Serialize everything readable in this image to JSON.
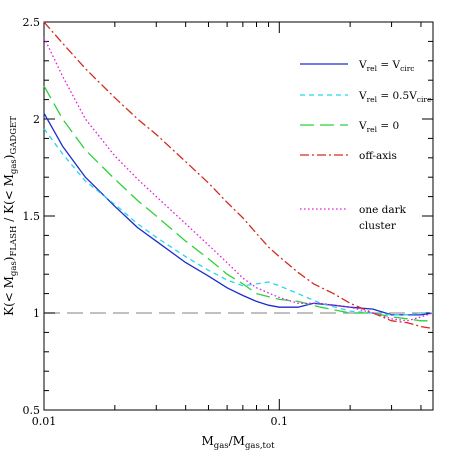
{
  "chart_data": {
    "type": "line",
    "title": "",
    "xlabel_parts": {
      "base": "M",
      "sub": "gas",
      "mid": "/M",
      "sub2": "gas,tot"
    },
    "ylabel_parts": [
      "K(< M",
      "gas",
      ")",
      "FLASH",
      " / K(< M",
      "gas",
      ")",
      "GADGET"
    ],
    "xscale": "log",
    "xlim": [
      0.01,
      0.45
    ],
    "ylim": [
      0.5,
      2.5
    ],
    "x_ticks": [
      {
        "value": 0.01,
        "label": "0.01"
      },
      {
        "value": 0.1,
        "label": "0.1"
      }
    ],
    "y_ticks": [
      {
        "value": 0.5,
        "label": "0.5"
      },
      {
        "value": 1,
        "label": "1"
      },
      {
        "value": 1.5,
        "label": "1.5"
      },
      {
        "value": 2,
        "label": "2"
      },
      {
        "value": 2.5,
        "label": "2.5"
      }
    ],
    "reference_line": {
      "y": 1,
      "color": "#9a9a9a",
      "dash": "long-dash"
    },
    "legend_position": "top-right",
    "series": [
      {
        "name": "V_rel = V_circ",
        "legend_parts": [
          "V",
          "rel",
          " = V",
          "circ"
        ],
        "color": "#1c2ccf",
        "dash": "solid",
        "points": [
          [
            0.01,
            2.03
          ],
          [
            0.012,
            1.86
          ],
          [
            0.015,
            1.7
          ],
          [
            0.02,
            1.55
          ],
          [
            0.025,
            1.44
          ],
          [
            0.03,
            1.37
          ],
          [
            0.04,
            1.26
          ],
          [
            0.05,
            1.19
          ],
          [
            0.06,
            1.13
          ],
          [
            0.07,
            1.09
          ],
          [
            0.08,
            1.06
          ],
          [
            0.09,
            1.04
          ],
          [
            0.1,
            1.03
          ],
          [
            0.12,
            1.03
          ],
          [
            0.14,
            1.05
          ],
          [
            0.17,
            1.04
          ],
          [
            0.2,
            1.03
          ],
          [
            0.25,
            1.02
          ],
          [
            0.3,
            0.99
          ],
          [
            0.35,
            0.99
          ],
          [
            0.4,
            0.99
          ],
          [
            0.45,
            1.0
          ]
        ]
      },
      {
        "name": "V_rel = 0.5V_circ",
        "legend_parts": [
          "V",
          "rel",
          " = 0.5V",
          "circ"
        ],
        "color": "#2ad4ee",
        "dash": "short-dash",
        "points": [
          [
            0.01,
            1.95
          ],
          [
            0.012,
            1.82
          ],
          [
            0.015,
            1.68
          ],
          [
            0.02,
            1.56
          ],
          [
            0.025,
            1.46
          ],
          [
            0.03,
            1.39
          ],
          [
            0.04,
            1.29
          ],
          [
            0.05,
            1.22
          ],
          [
            0.06,
            1.17
          ],
          [
            0.07,
            1.14
          ],
          [
            0.08,
            1.15
          ],
          [
            0.09,
            1.16
          ],
          [
            0.1,
            1.14
          ],
          [
            0.12,
            1.1
          ],
          [
            0.15,
            1.05
          ],
          [
            0.2,
            1.01
          ],
          [
            0.25,
            1.0
          ],
          [
            0.3,
            0.99
          ],
          [
            0.35,
            0.99
          ],
          [
            0.4,
            1.0
          ],
          [
            0.45,
            1.0
          ]
        ]
      },
      {
        "name": "V_rel = 0",
        "legend_parts": [
          "V",
          "rel",
          " = 0"
        ],
        "color": "#2ed13a",
        "dash": "long-dash",
        "points": [
          [
            0.01,
            2.17
          ],
          [
            0.012,
            2.0
          ],
          [
            0.015,
            1.84
          ],
          [
            0.02,
            1.69
          ],
          [
            0.025,
            1.58
          ],
          [
            0.03,
            1.5
          ],
          [
            0.04,
            1.37
          ],
          [
            0.05,
            1.28
          ],
          [
            0.06,
            1.2
          ],
          [
            0.07,
            1.15
          ],
          [
            0.08,
            1.1
          ],
          [
            0.1,
            1.07
          ],
          [
            0.12,
            1.06
          ],
          [
            0.15,
            1.03
          ],
          [
            0.2,
            1.0
          ],
          [
            0.25,
            1.0
          ],
          [
            0.3,
            0.98
          ],
          [
            0.35,
            0.97
          ],
          [
            0.4,
            0.96
          ],
          [
            0.45,
            0.96
          ]
        ]
      },
      {
        "name": "off-axis",
        "legend_parts": [
          "off-axis"
        ],
        "color": "#d42b1e",
        "dash": "dash-dot",
        "points": [
          [
            0.01,
            2.5
          ],
          [
            0.012,
            2.39
          ],
          [
            0.015,
            2.26
          ],
          [
            0.02,
            2.11
          ],
          [
            0.025,
            2.0
          ],
          [
            0.03,
            1.92
          ],
          [
            0.04,
            1.78
          ],
          [
            0.05,
            1.67
          ],
          [
            0.06,
            1.57
          ],
          [
            0.07,
            1.49
          ],
          [
            0.08,
            1.41
          ],
          [
            0.09,
            1.34
          ],
          [
            0.1,
            1.29
          ],
          [
            0.12,
            1.21
          ],
          [
            0.14,
            1.15
          ],
          [
            0.17,
            1.1
          ],
          [
            0.2,
            1.05
          ],
          [
            0.25,
            1.0
          ],
          [
            0.3,
            0.96
          ],
          [
            0.35,
            0.95
          ],
          [
            0.4,
            0.93
          ],
          [
            0.45,
            0.92
          ]
        ]
      },
      {
        "name": "one dark cluster",
        "legend_parts": [
          "one dark",
          "cluster"
        ],
        "color": "#e020e0",
        "dash": "dotted",
        "points": [
          [
            0.01,
            2.42
          ],
          [
            0.012,
            2.22
          ],
          [
            0.015,
            2.0
          ],
          [
            0.02,
            1.81
          ],
          [
            0.025,
            1.69
          ],
          [
            0.03,
            1.6
          ],
          [
            0.04,
            1.46
          ],
          [
            0.05,
            1.35
          ],
          [
            0.06,
            1.26
          ],
          [
            0.07,
            1.18
          ],
          [
            0.08,
            1.13
          ],
          [
            0.1,
            1.08
          ],
          [
            0.12,
            1.05
          ],
          [
            0.15,
            1.05
          ],
          [
            0.2,
            1.03
          ],
          [
            0.25,
            1.0
          ],
          [
            0.3,
            0.97
          ],
          [
            0.35,
            0.96
          ],
          [
            0.4,
            0.98
          ],
          [
            0.45,
            1.0
          ]
        ]
      }
    ]
  }
}
